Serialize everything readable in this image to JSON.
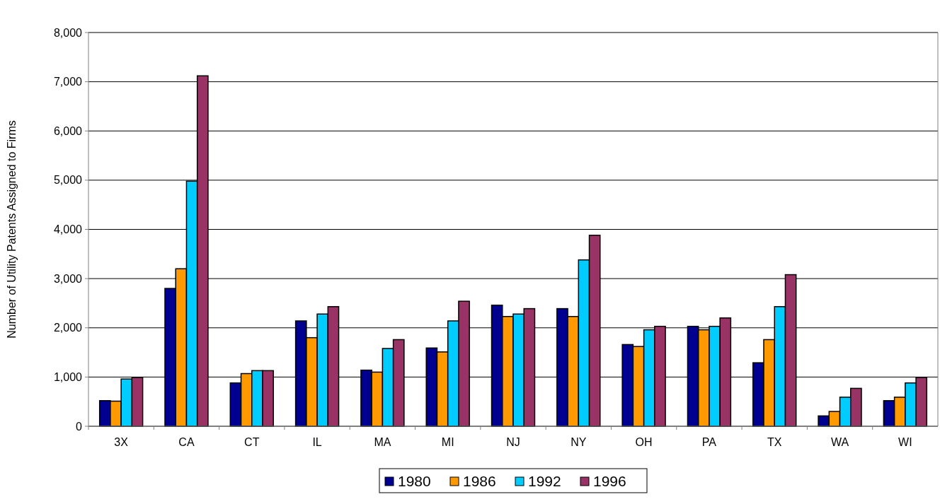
{
  "chart_data": {
    "type": "bar",
    "ylabel": "Number of Utility Patents Assigned to Firms",
    "categories": [
      "3X",
      "CA",
      "CT",
      "IL",
      "MA",
      "MI",
      "NJ",
      "NY",
      "OH",
      "PA",
      "TX",
      "WA",
      "WI"
    ],
    "series": [
      {
        "name": "1980",
        "color": "#000090",
        "values": [
          520,
          2800,
          880,
          2140,
          1140,
          1590,
          2460,
          2390,
          1660,
          2030,
          1290,
          210,
          520
        ]
      },
      {
        "name": "1986",
        "color": "#ff9900",
        "values": [
          510,
          3200,
          1070,
          1800,
          1100,
          1510,
          2230,
          2230,
          1620,
          1960,
          1760,
          300,
          590
        ]
      },
      {
        "name": "1992",
        "color": "#00ccff",
        "values": [
          960,
          4980,
          1130,
          2280,
          1580,
          2140,
          2280,
          3380,
          1960,
          2030,
          2430,
          590,
          880
        ]
      },
      {
        "name": "1996",
        "color": "#993366",
        "values": [
          990,
          7120,
          1130,
          2430,
          1760,
          2540,
          2390,
          3880,
          2030,
          2200,
          3080,
          770,
          990
        ]
      }
    ],
    "ylim": [
      0,
      8000
    ],
    "yticks": [
      {
        "value": 0,
        "label": "0"
      },
      {
        "value": 1000,
        "label": "1,000"
      },
      {
        "value": 2000,
        "label": "2,000"
      },
      {
        "value": 3000,
        "label": "3,000"
      },
      {
        "value": 4000,
        "label": "4,000"
      },
      {
        "value": 5000,
        "label": "5,000"
      },
      {
        "value": 6000,
        "label": "6,000"
      },
      {
        "value": 7000,
        "label": "7,000"
      },
      {
        "value": 8000,
        "label": "8,000"
      }
    ],
    "grid": "y",
    "legend": "bottom"
  }
}
